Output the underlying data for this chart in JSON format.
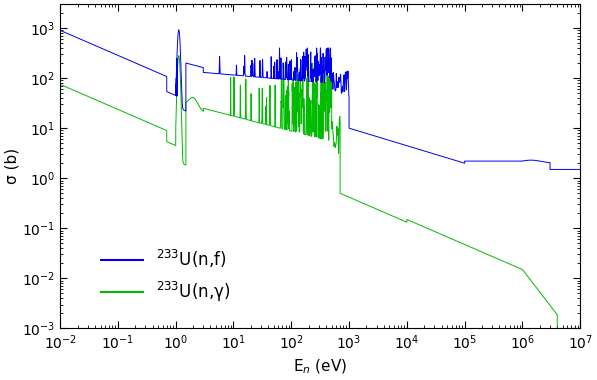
{
  "title": "",
  "xlabel": "E$_n$ (eV)",
  "ylabel": "σ (b)",
  "xlim": [
    0.01,
    10000000.0
  ],
  "ylim": [
    0.001,
    3000.0
  ],
  "fission_color": "#0000ee",
  "capture_color": "#00bb00",
  "legend_fission": "$^{233}$U(n,f)",
  "legend_capture": "$^{233}$U(n,γ)",
  "background_color": "#ffffff",
  "legend_fontsize": 12,
  "axis_fontsize": 11
}
